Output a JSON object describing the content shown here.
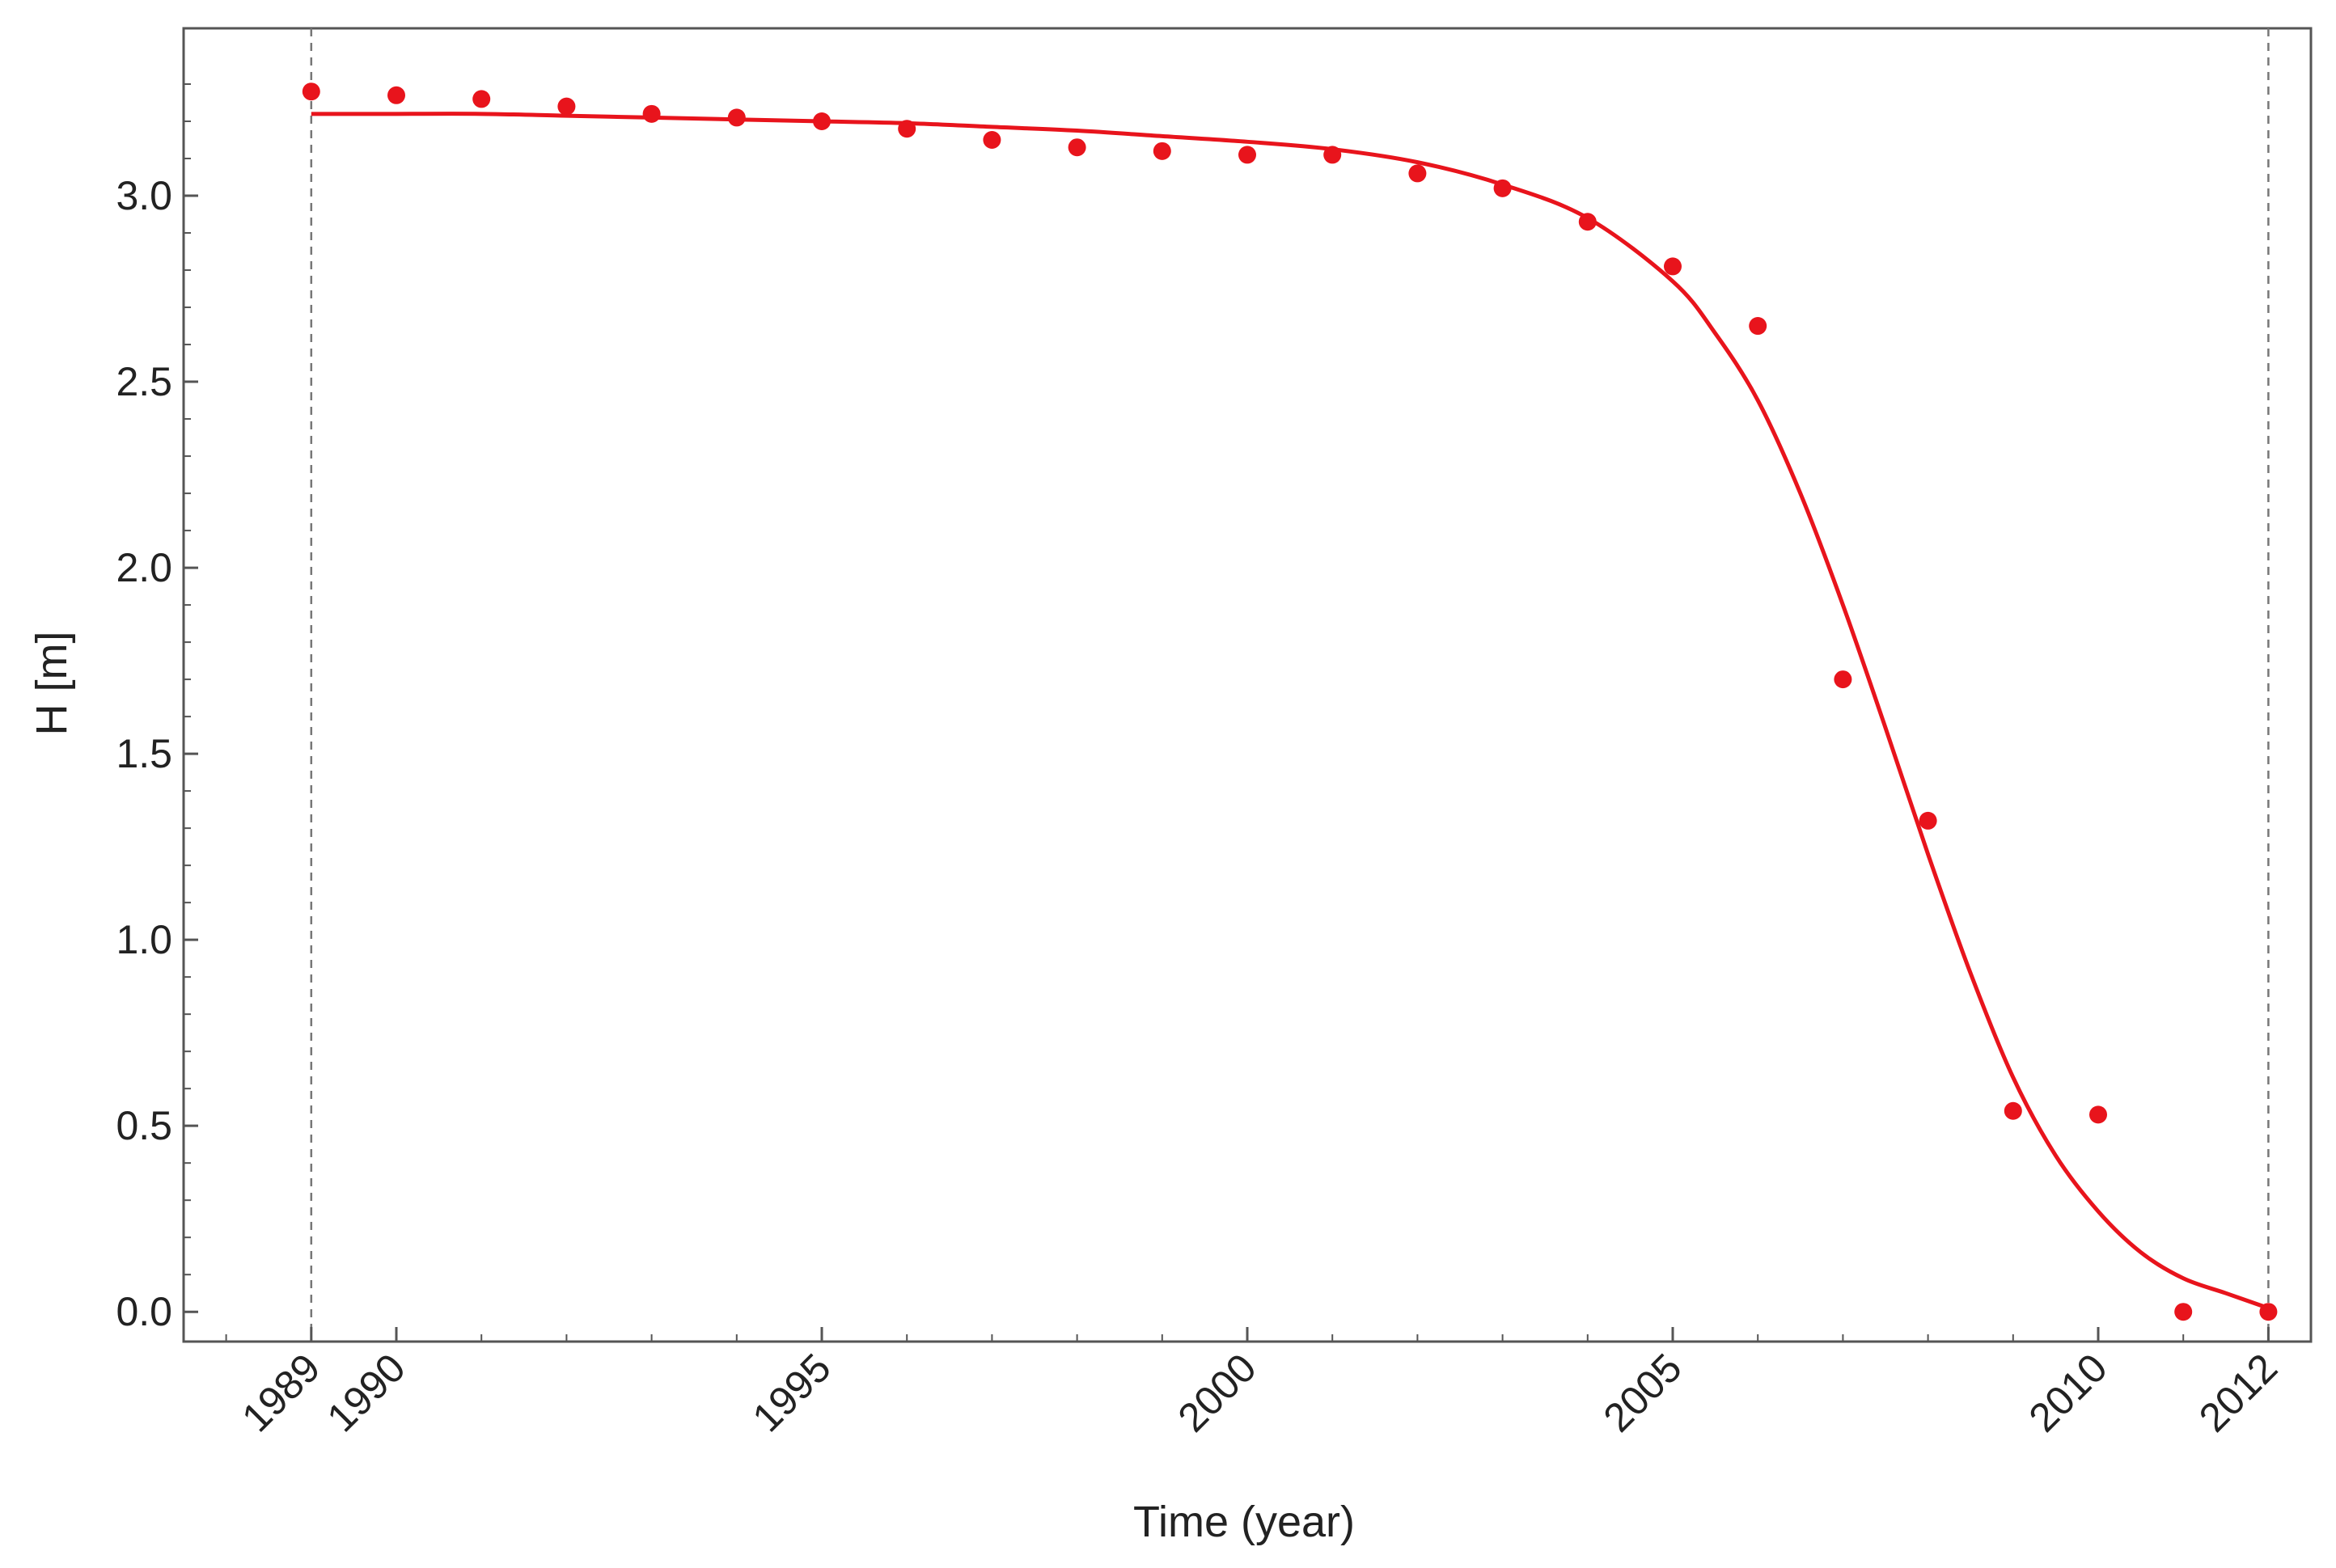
{
  "chart_data": {
    "type": "scatter",
    "title": "",
    "xlabel": "Time (year)",
    "ylabel": "H [m]",
    "xlim": [
      1987.5,
      2012.5
    ],
    "ylim": [
      -0.08,
      3.45
    ],
    "x_ticks": [
      1989,
      1990,
      1995,
      2000,
      2005,
      2010,
      2012
    ],
    "y_ticks": [
      "0.0",
      "0.5",
      "1.0",
      "1.5",
      "2.0",
      "2.5",
      "3.0"
    ],
    "reference_lines_x": [
      1989,
      2012
    ],
    "colors": {
      "series": "#e8141c",
      "axis": "#555555",
      "reference": "#777777"
    },
    "series": [
      {
        "kind": "points",
        "x": [
          1989,
          1990,
          1991,
          1992,
          1993,
          1994,
          1995,
          1996,
          1997,
          1998,
          1999,
          2000,
          2001,
          2002,
          2003,
          2004,
          2005,
          2006,
          2007,
          2008,
          2009,
          2010,
          2011,
          2012
        ],
        "y": [
          3.28,
          3.27,
          3.26,
          3.24,
          3.22,
          3.21,
          3.2,
          3.18,
          3.15,
          3.13,
          3.12,
          3.11,
          3.11,
          3.06,
          3.02,
          2.93,
          2.81,
          2.65,
          1.7,
          1.32,
          0.54,
          0.53,
          0.0,
          0.0
        ]
      },
      {
        "kind": "curve",
        "x": [
          1989,
          1990,
          1991,
          1992,
          1993,
          1994,
          1995,
          1996,
          1997,
          1998,
          1999,
          2000,
          2001,
          2002,
          2003,
          2004,
          2005,
          2005.5,
          2006,
          2006.5,
          2007,
          2007.5,
          2008,
          2008.5,
          2009,
          2009.5,
          2010,
          2010.5,
          2011,
          2011.5,
          2012
        ],
        "y": [
          3.22,
          3.22,
          3.22,
          3.215,
          3.21,
          3.205,
          3.2,
          3.195,
          3.185,
          3.175,
          3.16,
          3.145,
          3.125,
          3.09,
          3.03,
          2.94,
          2.77,
          2.63,
          2.45,
          2.2,
          1.9,
          1.57,
          1.23,
          0.91,
          0.63,
          0.42,
          0.27,
          0.16,
          0.09,
          0.05,
          0.01
        ]
      }
    ]
  }
}
